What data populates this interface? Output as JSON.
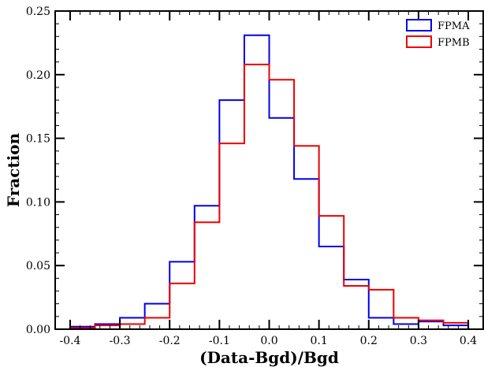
{
  "chart_data": {
    "type": "histogram",
    "xlabel": "(Data-Bgd)/Bgd",
    "ylabel": "Fraction",
    "xlim": [
      -0.43,
      0.43
    ],
    "ylim": [
      0,
      0.25
    ],
    "xticks": [
      -0.4,
      -0.3,
      -0.2,
      -0.1,
      0.0,
      0.1,
      0.2,
      0.3,
      0.4
    ],
    "xtick_labels": [
      "-0.4",
      "-0.3",
      "-0.2",
      "-0.1",
      "0.0",
      "0.1",
      "0.2",
      "0.3",
      "0.4"
    ],
    "yticks": [
      0,
      0.05,
      0.1,
      0.15,
      0.2,
      0.25
    ],
    "ytick_labels": [
      "0.00",
      "0.05",
      "0.10",
      "0.15",
      "0.20",
      "0.25"
    ],
    "bin_edges": [
      -0.4,
      -0.35,
      -0.3,
      -0.25,
      -0.2,
      -0.15,
      -0.1,
      -0.05,
      0.0,
      0.05,
      0.1,
      0.15,
      0.2,
      0.25,
      0.3,
      0.35,
      0.4
    ],
    "series": [
      {
        "name": "FPMA",
        "color": "#0000ee",
        "values": [
          0.002,
          0.004,
          0.009,
          0.02,
          0.053,
          0.097,
          0.18,
          0.231,
          0.166,
          0.118,
          0.065,
          0.039,
          0.009,
          0.004,
          0.006,
          0.003
        ]
      },
      {
        "name": "FPMB",
        "color": "#ee0000",
        "values": [
          0.001,
          0.003,
          0.004,
          0.009,
          0.036,
          0.084,
          0.146,
          0.208,
          0.196,
          0.144,
          0.089,
          0.034,
          0.031,
          0.009,
          0.007,
          0.005
        ]
      }
    ],
    "legend_position": "top-right",
    "grid": false
  }
}
